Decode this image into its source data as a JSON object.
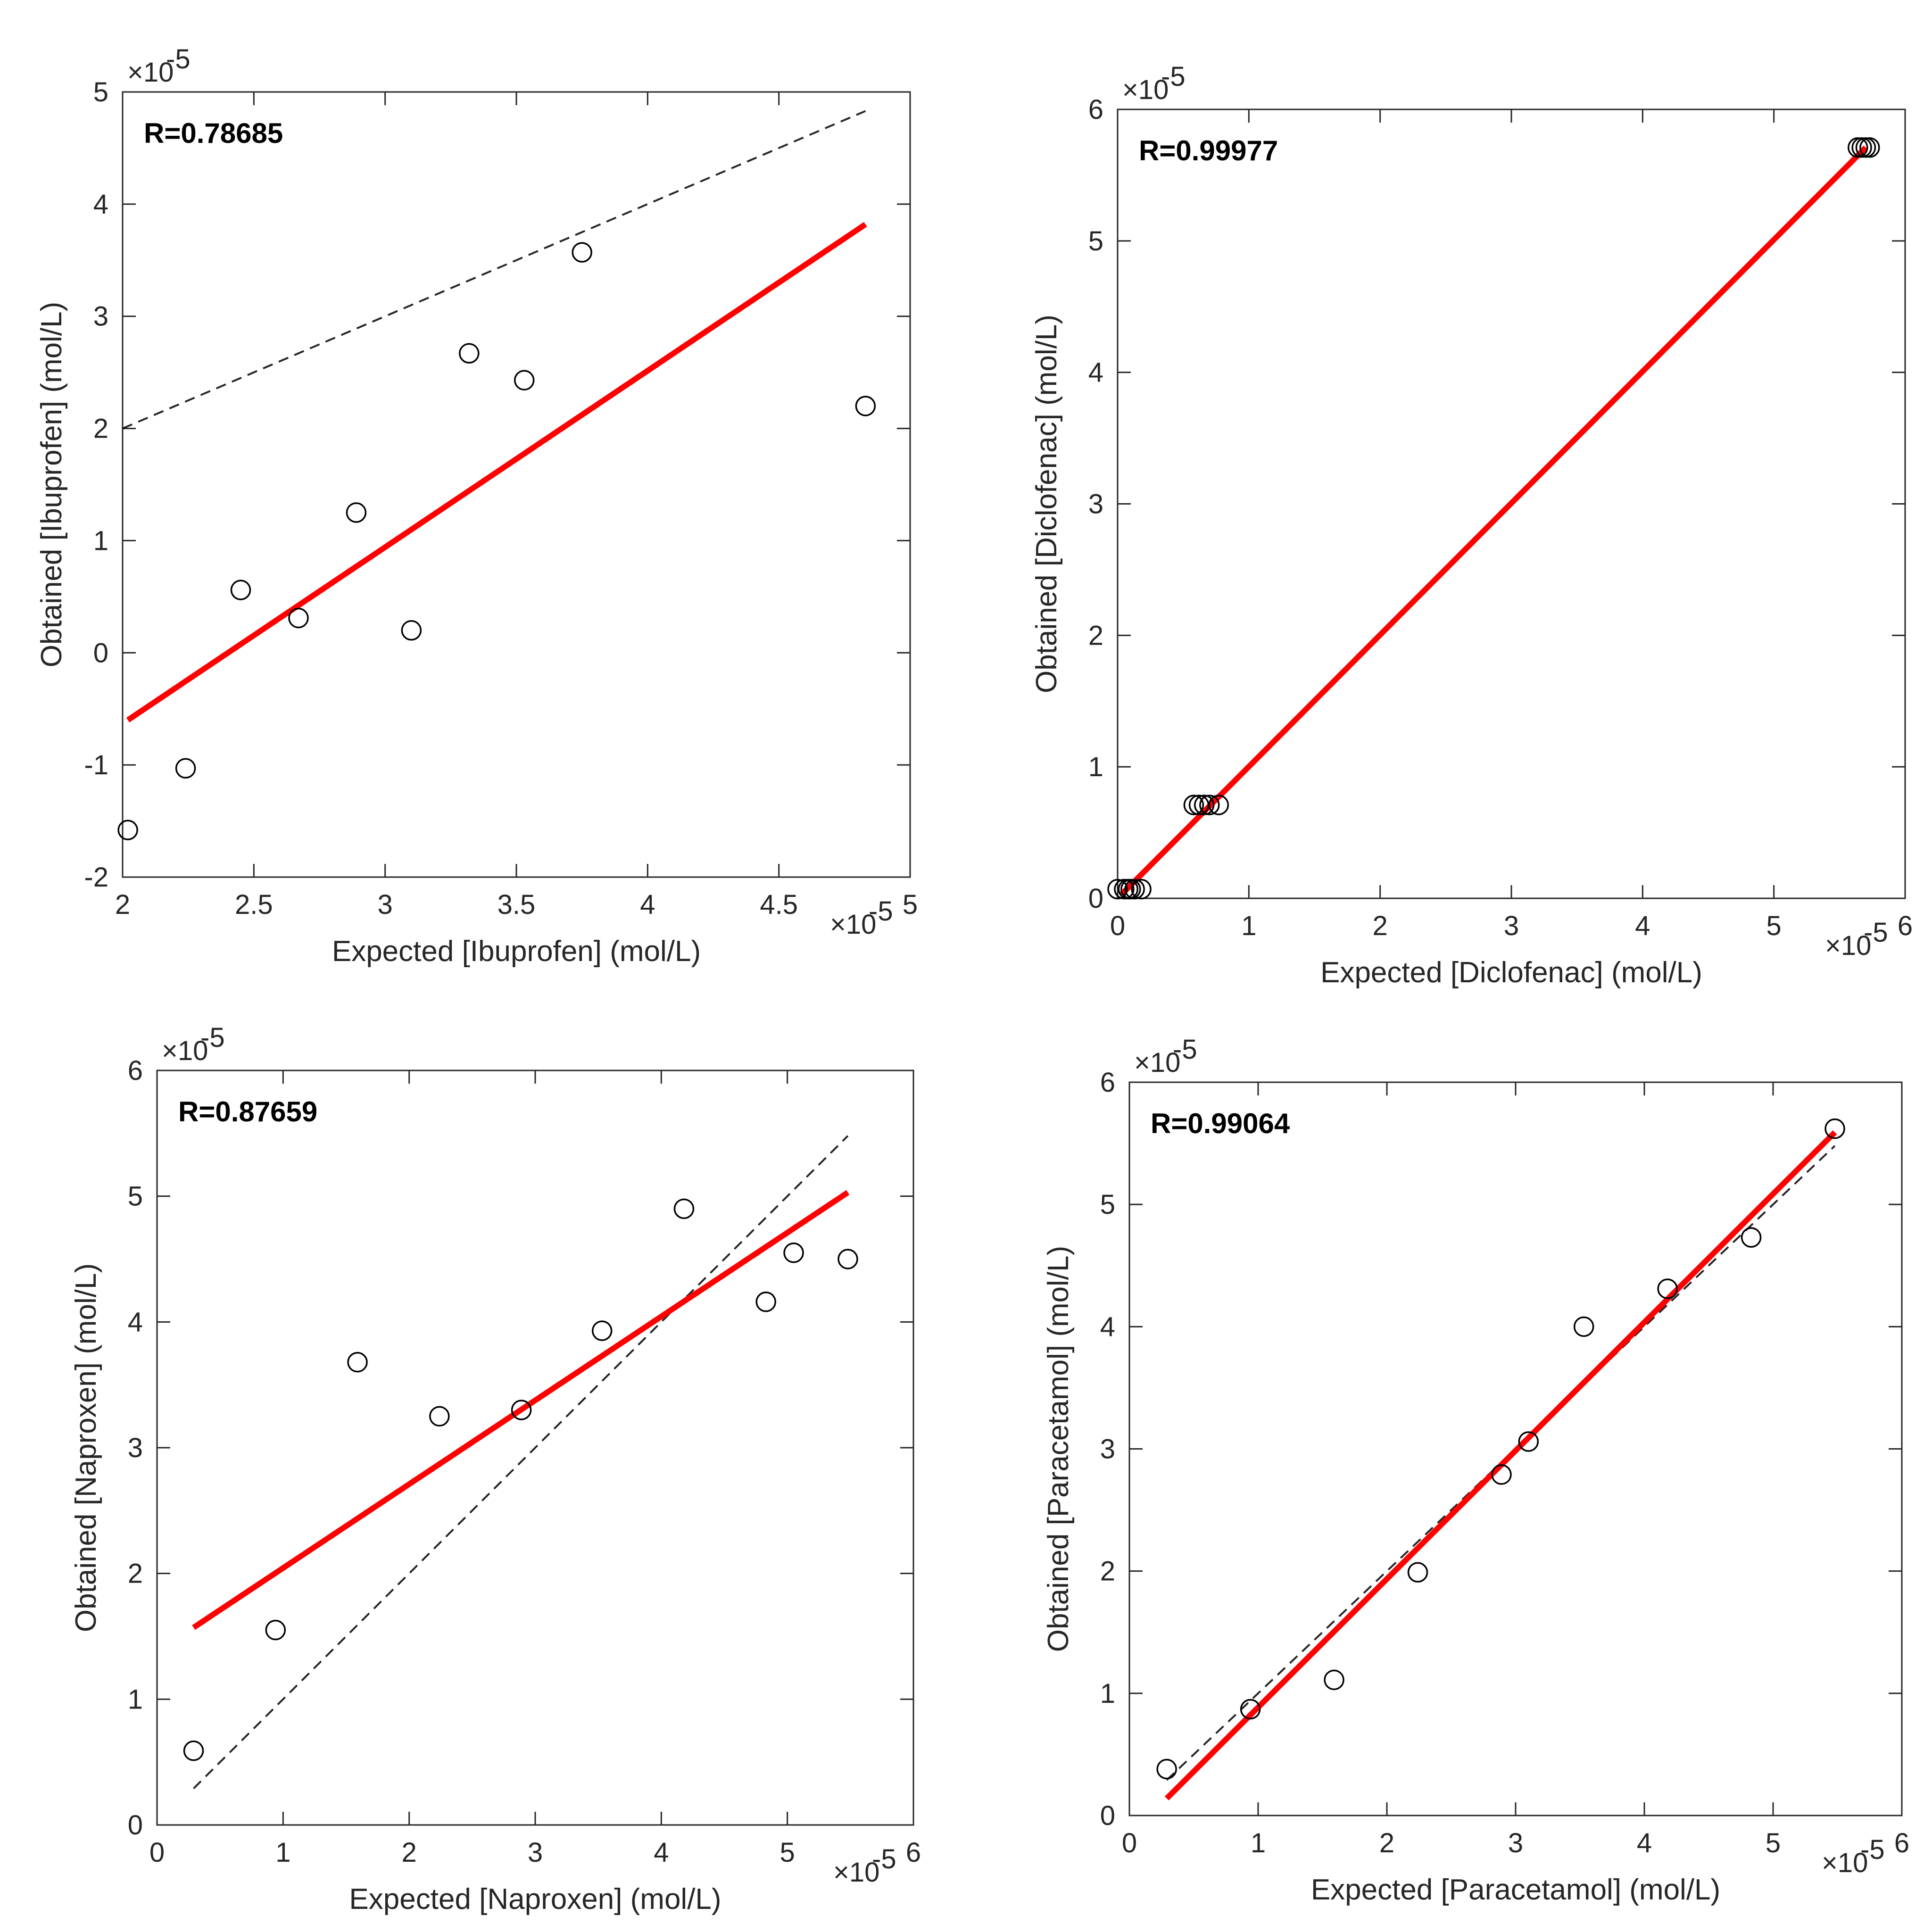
{
  "chart_data": [
    {
      "type": "scatter",
      "title": "",
      "r_label": "R=0.78685",
      "xlabel": "Expected [Ibuprofen] (mol/L)",
      "ylabel": "Obtained [Ibuprofen] (mol/L)",
      "xlim": [
        2,
        5
      ],
      "ylim": [
        -2,
        5
      ],
      "x_ticks": [
        2,
        2.5,
        3,
        3.5,
        4,
        4.5,
        5
      ],
      "y_ticks": [
        -2,
        -1,
        0,
        1,
        2,
        3,
        4,
        5
      ],
      "x_tick_labels": [
        "2",
        "2.5",
        "3",
        "3.5",
        "4",
        "4.5",
        "5"
      ],
      "y_tick_labels": [
        "-2",
        "-1",
        "0",
        "1",
        "2",
        "3",
        "4",
        "5"
      ],
      "x_multiplier": "×10",
      "x_exponent": "-5",
      "y_multiplier": "×10",
      "y_exponent": "-5",
      "points": [
        {
          "x": 2.02,
          "y": -1.58
        },
        {
          "x": 2.24,
          "y": -1.03
        },
        {
          "x": 2.45,
          "y": 0.56
        },
        {
          "x": 2.67,
          "y": 0.31
        },
        {
          "x": 2.89,
          "y": 1.25
        },
        {
          "x": 3.1,
          "y": 0.2
        },
        {
          "x": 3.32,
          "y": 2.67
        },
        {
          "x": 3.53,
          "y": 2.43
        },
        {
          "x": 3.75,
          "y": 3.57
        },
        {
          "x": 4.83,
          "y": 2.2
        }
      ],
      "fit_line": {
        "x": [
          2.02,
          4.83
        ],
        "y": [
          -0.6,
          3.82
        ],
        "color": "#ff0000",
        "style": "solid"
      },
      "identity_line": {
        "x": [
          2.0,
          4.83
        ],
        "y": [
          2.0,
          4.83
        ],
        "color": "#000000",
        "style": "dashed"
      }
    },
    {
      "type": "scatter",
      "title": "",
      "r_label": "R=0.99977",
      "xlabel": "Expected [Diclofenac] (mol/L)",
      "ylabel": "Obtained [Diclofenac] (mol/L)",
      "xlim": [
        0,
        6
      ],
      "ylim": [
        0,
        6
      ],
      "x_ticks": [
        0,
        1,
        2,
        3,
        4,
        5,
        6
      ],
      "y_ticks": [
        0,
        1,
        2,
        3,
        4,
        5,
        6
      ],
      "x_tick_labels": [
        "0",
        "1",
        "2",
        "3",
        "4",
        "5",
        "6"
      ],
      "y_tick_labels": [
        "0",
        "1",
        "2",
        "3",
        "4",
        "5",
        "6"
      ],
      "x_multiplier": "×10",
      "x_exponent": "-5",
      "y_multiplier": "×10",
      "y_exponent": "-5",
      "points": [
        {
          "x": 0.0,
          "y": 0.07
        },
        {
          "x": 0.05,
          "y": 0.07
        },
        {
          "x": 0.08,
          "y": 0.07
        },
        {
          "x": 0.1,
          "y": 0.07
        },
        {
          "x": 0.13,
          "y": 0.07
        },
        {
          "x": 0.18,
          "y": 0.07
        },
        {
          "x": 0.58,
          "y": 0.71
        },
        {
          "x": 0.62,
          "y": 0.71
        },
        {
          "x": 0.66,
          "y": 0.71
        },
        {
          "x": 0.7,
          "y": 0.71
        },
        {
          "x": 0.77,
          "y": 0.71
        },
        {
          "x": 5.64,
          "y": 5.71
        },
        {
          "x": 5.67,
          "y": 5.71
        },
        {
          "x": 5.7,
          "y": 5.71
        },
        {
          "x": 5.73,
          "y": 5.71
        }
      ],
      "fit_line": {
        "x": [
          0.03,
          5.7
        ],
        "y": [
          0.03,
          5.71
        ],
        "color": "#ff0000",
        "style": "solid"
      },
      "identity_line": {
        "x": [
          0.03,
          5.7
        ],
        "y": [
          0.03,
          5.7
        ],
        "color": "#000000",
        "style": "dashed"
      }
    },
    {
      "type": "scatter",
      "title": "",
      "r_label": "R=0.87659",
      "xlabel": "Expected [Naproxen] (mol/L)",
      "ylabel": "Obtained [Naproxen] (mol/L)",
      "xlim": [
        0,
        6
      ],
      "ylim": [
        0,
        6
      ],
      "x_ticks": [
        0,
        1,
        2,
        3,
        4,
        5,
        6
      ],
      "y_ticks": [
        0,
        1,
        2,
        3,
        4,
        5,
        6
      ],
      "x_tick_labels": [
        "0",
        "1",
        "2",
        "3",
        "4",
        "5",
        "6"
      ],
      "y_tick_labels": [
        "0",
        "1",
        "2",
        "3",
        "4",
        "5",
        "6"
      ],
      "x_multiplier": "×10",
      "x_exponent": "-5",
      "y_multiplier": "×10",
      "y_exponent": "-5",
      "points": [
        {
          "x": 0.29,
          "y": 0.59
        },
        {
          "x": 0.94,
          "y": 1.55
        },
        {
          "x": 1.59,
          "y": 3.68
        },
        {
          "x": 2.24,
          "y": 3.25
        },
        {
          "x": 2.89,
          "y": 3.3
        },
        {
          "x": 3.53,
          "y": 3.93
        },
        {
          "x": 4.18,
          "y": 4.9
        },
        {
          "x": 4.83,
          "y": 4.16
        },
        {
          "x": 5.05,
          "y": 4.55
        },
        {
          "x": 5.48,
          "y": 4.5
        }
      ],
      "fit_line": {
        "x": [
          0.29,
          5.48
        ],
        "y": [
          1.57,
          5.03
        ],
        "color": "#ff0000",
        "style": "solid"
      },
      "identity_line": {
        "x": [
          0.29,
          5.48
        ],
        "y": [
          0.29,
          5.48
        ],
        "color": "#000000",
        "style": "dashed"
      }
    },
    {
      "type": "scatter",
      "title": "",
      "r_label": "R=0.99064",
      "xlabel": "Expected [Paracetamol] (mol/L)",
      "ylabel": "Obtained [Paracetamol] (mol/L)",
      "xlim": [
        0,
        6
      ],
      "ylim": [
        0,
        6
      ],
      "x_ticks": [
        0,
        1,
        2,
        3,
        4,
        5,
        6
      ],
      "y_ticks": [
        0,
        1,
        2,
        3,
        4,
        5,
        6
      ],
      "x_tick_labels": [
        "0",
        "1",
        "2",
        "3",
        "4",
        "5",
        "6"
      ],
      "y_tick_labels": [
        "0",
        "1",
        "2",
        "3",
        "4",
        "5",
        "6"
      ],
      "x_multiplier": "×10",
      "x_exponent": "-5",
      "y_multiplier": "×10",
      "y_exponent": "-5",
      "points": [
        {
          "x": 0.29,
          "y": 0.38
        },
        {
          "x": 0.94,
          "y": 0.87
        },
        {
          "x": 1.59,
          "y": 1.11
        },
        {
          "x": 2.24,
          "y": 1.99
        },
        {
          "x": 2.89,
          "y": 2.79
        },
        {
          "x": 3.1,
          "y": 3.06
        },
        {
          "x": 3.53,
          "y": 4.0
        },
        {
          "x": 4.18,
          "y": 4.31
        },
        {
          "x": 4.83,
          "y": 4.73
        },
        {
          "x": 5.48,
          "y": 5.62
        }
      ],
      "fit_line": {
        "x": [
          0.29,
          5.48
        ],
        "y": [
          0.14,
          5.59
        ],
        "color": "#ff0000",
        "style": "solid"
      },
      "identity_line": {
        "x": [
          0.29,
          5.48
        ],
        "y": [
          0.29,
          5.48
        ],
        "color": "#000000",
        "style": "dashed"
      }
    }
  ]
}
